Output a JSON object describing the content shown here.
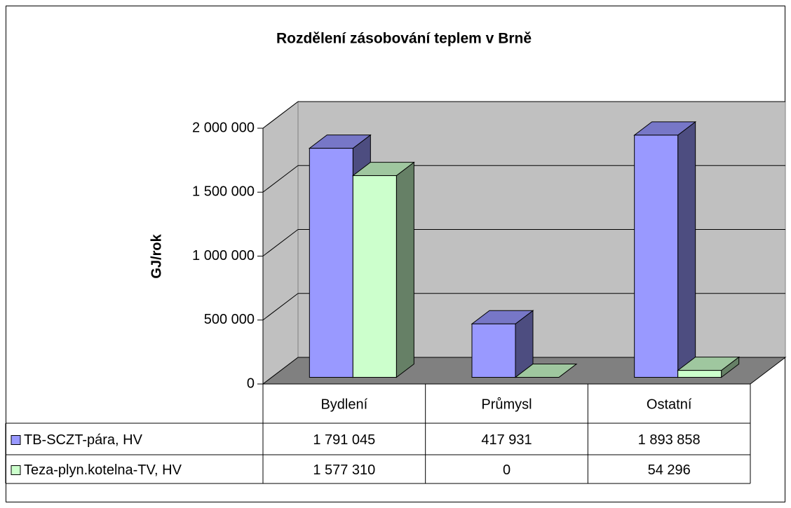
{
  "chart_data": {
    "type": "bar3d",
    "title": "Rozdělení zásobování teplem v Brně",
    "y_label": "GJ/rok",
    "categories": [
      "Bydlení",
      "Průmysl",
      "Ostatní"
    ],
    "series": [
      {
        "name": "TB-SCZT-pára, HV",
        "color": "#9999ff",
        "values": [
          1791045,
          417931,
          1893858
        ],
        "value_labels": [
          "1 791 045",
          "417 931",
          "1 893 858"
        ]
      },
      {
        "name": "Teza-plyn.kotelna-TV, HV",
        "color": "#ccffcc",
        "values": [
          1577310,
          0,
          54296
        ],
        "value_labels": [
          "1 577 310",
          "0",
          "54 296"
        ]
      }
    ],
    "ylim": [
      0,
      2000000
    ],
    "yticks": [
      0,
      {
        "value": 500000,
        "label": "500 000"
      },
      {
        "value": 1000000,
        "label": "1 000 000"
      },
      {
        "value": 1500000,
        "label": "1 500 000"
      },
      {
        "value": 2000000,
        "label": "2 000 000"
      }
    ],
    "grid": true
  }
}
